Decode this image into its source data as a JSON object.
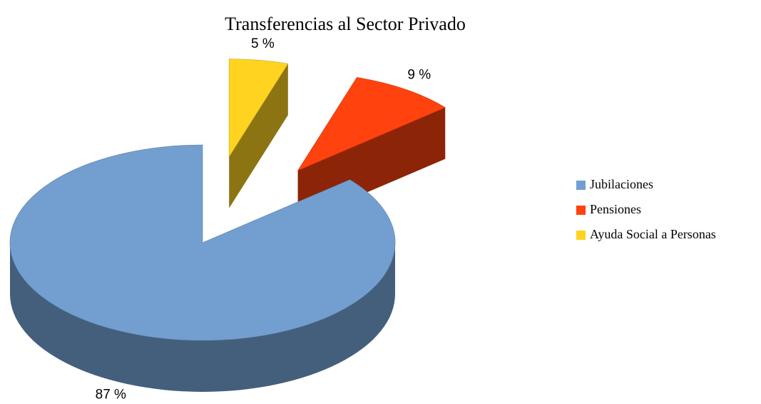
{
  "chart_data": {
    "type": "pie",
    "title": "Transferencias al Sector Privado",
    "categories": [
      "Jubilaciones",
      "Pensiones",
      "Ayuda Social a Personas"
    ],
    "values": [
      87,
      9,
      5
    ],
    "value_labels": [
      "87 %",
      "9 %",
      "5 %"
    ],
    "colors": [
      "#729fcf",
      "#ff420e",
      "#ffd320"
    ],
    "legend": "right"
  }
}
